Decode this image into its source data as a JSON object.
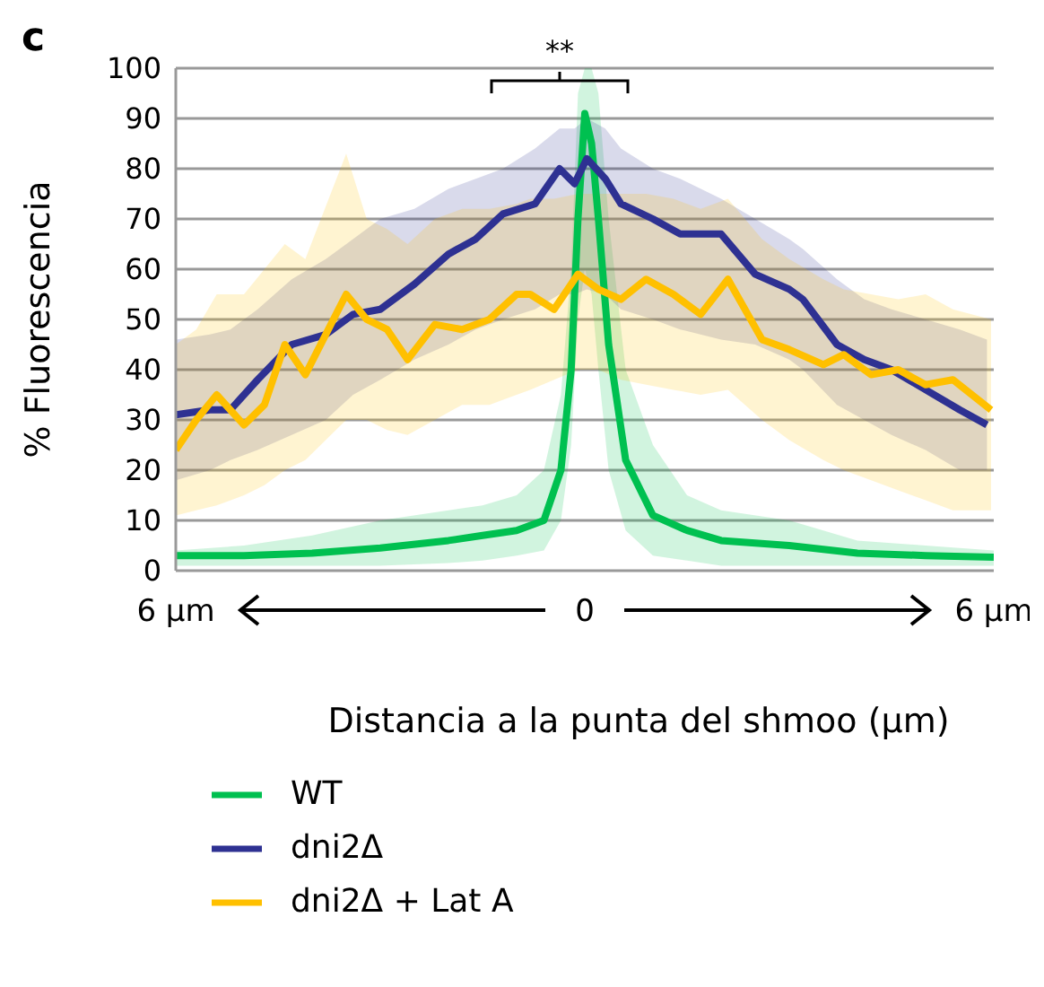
{
  "chart_data": {
    "type": "line",
    "ylabel": "% Fluorescencia",
    "xlabel": "Distancia a la punta del shmoo (µm)",
    "xlim": [
      -6,
      6
    ],
    "xticks": [
      {
        "value": -6,
        "label": "6 µm"
      },
      0,
      {
        "value": 6,
        "label": "6 µm"
      }
    ],
    "ylim": [
      0,
      100
    ],
    "yticks": [
      0,
      10,
      20,
      30,
      40,
      50,
      60,
      70,
      80,
      90,
      100
    ],
    "grid": "y",
    "legend": "bottom",
    "marker": "none",
    "line_style": "solid",
    "annotations": [
      "c",
      "**"
    ],
    "series": [
      {
        "name": "WT",
        "color": "#00c050",
        "x": [
          -6,
          -5,
          -4,
          -3,
          -2,
          -1.5,
          -1,
          -0.6,
          -0.35,
          -0.2,
          -0.1,
          0,
          0.1,
          0.2,
          0.35,
          0.6,
          1,
          1.5,
          2,
          3,
          4,
          5,
          6
        ],
        "values": [
          3,
          3,
          3.5,
          4.5,
          6,
          7,
          8,
          10,
          20,
          40,
          70,
          91,
          85,
          70,
          45,
          22,
          11,
          8,
          6,
          5,
          3.5,
          3,
          2.7
        ],
        "lower": [
          1,
          1,
          1,
          1,
          1.5,
          2,
          3,
          4,
          10,
          25,
          50,
          60,
          55,
          40,
          20,
          8,
          3,
          2,
          1,
          1,
          1,
          1,
          1
        ],
        "upper": [
          4,
          5,
          7,
          10,
          12,
          13,
          15,
          20,
          35,
          60,
          95,
          100,
          100,
          95,
          70,
          40,
          25,
          15,
          12,
          10,
          6,
          5,
          4
        ]
      },
      {
        "name": "dni2Δ",
        "color": "#2e3192",
        "x": [
          -6,
          -5.5,
          -5.2,
          -4.8,
          -4.3,
          -3.8,
          -3.4,
          -3,
          -2.5,
          -2,
          -1.6,
          -1.2,
          -0.73,
          -0.37,
          -0.15,
          0.03,
          0.3,
          0.53,
          1,
          1.4,
          2,
          2.5,
          3,
          3.2,
          3.7,
          4.1,
          4.5,
          5,
          5.5,
          5.9
        ],
        "values": [
          31,
          32,
          32,
          38,
          45,
          47,
          51,
          52,
          57,
          63,
          66,
          71,
          73,
          80,
          77,
          82,
          78,
          73,
          70,
          67,
          67,
          59,
          56,
          54,
          45,
          42,
          40,
          36,
          32,
          29
        ],
        "lower": [
          18,
          20,
          22,
          24,
          27,
          30,
          35,
          38,
          42,
          45,
          48,
          50,
          52,
          55,
          55,
          56,
          55,
          52,
          50,
          48,
          46,
          45,
          42,
          40,
          33,
          30,
          27,
          24,
          20,
          20
        ],
        "upper": [
          46,
          47,
          48,
          52,
          58,
          62,
          66,
          70,
          72,
          76,
          78,
          80,
          84,
          88,
          88,
          90,
          88,
          84,
          80,
          78,
          74,
          70,
          66,
          64,
          58,
          54,
          52,
          50,
          48,
          46
        ]
      },
      {
        "name": "dni2Δ + Lat A",
        "color": "#ffc000",
        "x": [
          -6,
          -5.7,
          -5.4,
          -5,
          -4.7,
          -4.4,
          -4.1,
          -3.5,
          -3.2,
          -2.9,
          -2.6,
          -2.2,
          -1.8,
          -1.4,
          -1,
          -0.8,
          -0.45,
          -0.1,
          0.2,
          0.53,
          0.9,
          1.3,
          1.7,
          2.1,
          2.6,
          3,
          3.5,
          3.8,
          4.2,
          4.6,
          5,
          5.4,
          5.96
        ],
        "values": [
          24,
          30,
          35,
          29,
          33,
          45,
          39,
          55,
          50,
          48,
          42,
          49,
          48,
          50,
          55,
          55,
          52,
          59,
          56,
          54,
          58,
          55,
          51,
          58,
          46,
          44,
          41,
          43,
          39,
          40,
          37,
          38,
          32
        ],
        "lower": [
          11,
          12,
          13,
          15,
          17,
          20,
          22,
          30,
          30,
          28,
          27,
          30,
          33,
          33,
          35,
          36,
          38,
          40,
          40,
          38,
          37,
          36,
          35,
          36,
          30,
          26,
          22,
          20,
          18,
          16,
          14,
          12,
          12
        ],
        "upper": [
          45,
          48,
          55,
          55,
          60,
          65,
          62,
          83,
          70,
          68,
          65,
          70,
          72,
          72,
          73,
          74,
          74,
          75,
          75,
          75,
          75,
          74,
          72,
          74,
          66,
          62,
          58,
          56,
          55,
          54,
          55,
          52,
          50
        ]
      }
    ]
  }
}
